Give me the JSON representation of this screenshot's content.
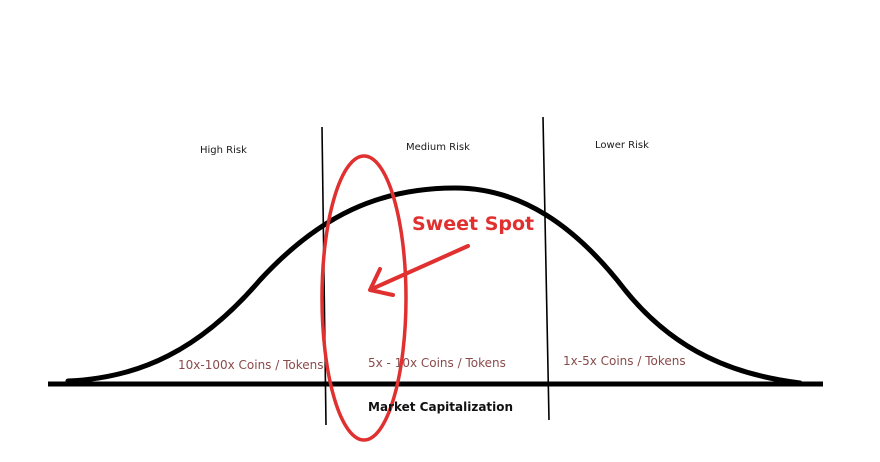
{
  "zones": [
    {
      "title": "High Risk",
      "range": "10x-100x Coins / Tokens"
    },
    {
      "title": "Medium Risk",
      "range": "5x - 10x Coins / Tokens"
    },
    {
      "title": "Lower Risk",
      "range": "1x-5x Coins / Tokens"
    }
  ],
  "x_axis_label": "Market Capitalization",
  "annotation": {
    "text": "Sweet Spot",
    "color": "#e03030"
  },
  "colors": {
    "curve": "#000000",
    "range_text": "#8a4a4a",
    "highlight": "#e03030"
  }
}
